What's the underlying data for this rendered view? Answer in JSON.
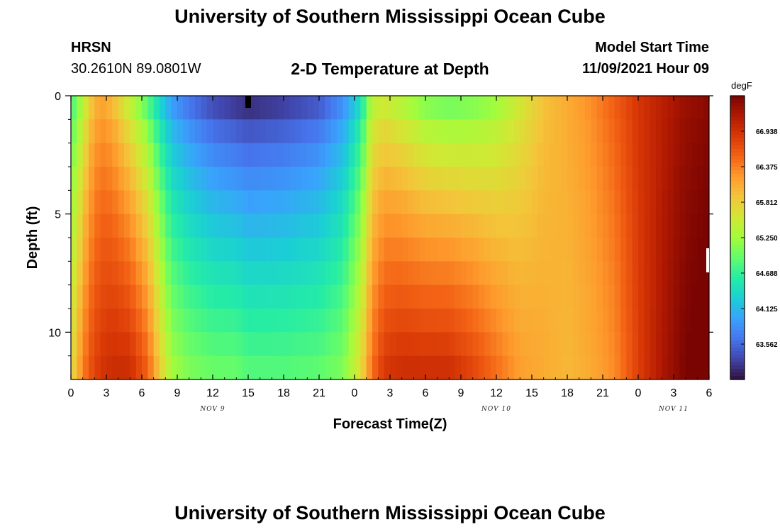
{
  "header": {
    "title": "University of Southern Mississippi Ocean Cube",
    "station": "HRSN",
    "coords": "30.2610N  89.0801W",
    "subtitle": "2-D Temperature at Depth",
    "model_start_label": "Model Start Time",
    "model_start_value": "11/09/2021 Hour 09"
  },
  "footer": {
    "title": "University of Southern Mississippi Ocean Cube"
  },
  "chart_data": {
    "type": "heatmap",
    "xlabel": "Forecast Time(Z)",
    "ylabel": "Depth (ft)",
    "x_range_hours": [
      0,
      54
    ],
    "y_range_ft": [
      0,
      12
    ],
    "y_inverted": true,
    "x_ticks": [
      "0",
      "3",
      "6",
      "9",
      "12",
      "15",
      "18",
      "21",
      "0",
      "3",
      "6",
      "9",
      "12",
      "15",
      "18",
      "21",
      "0",
      "3",
      "6"
    ],
    "date_labels": [
      {
        "label": "NOV 9",
        "hour": 12
      },
      {
        "label": "NOV 10",
        "hour": 36
      },
      {
        "label": "NOV 11",
        "hour": 51
      }
    ],
    "y_ticks": [
      {
        "value": 0,
        "label": "0"
      },
      {
        "value": 5,
        "label": "5"
      },
      {
        "value": 10,
        "label": "10"
      }
    ],
    "colorbar": {
      "unit": "degF",
      "min": 63.0,
      "max": 67.5,
      "ticks": [
        "63.562",
        "64.125",
        "64.688",
        "65.250",
        "65.812",
        "66.375",
        "66.938"
      ],
      "colors": [
        "#30123b",
        "#4145ab",
        "#4675ed",
        "#39a2fc",
        "#1bcfd4",
        "#24eca6",
        "#61fc6c",
        "#a4fc3b",
        "#d1e834",
        "#f3c63a",
        "#fe9b2d",
        "#f36315",
        "#d93806",
        "#b11901",
        "#7a0402"
      ]
    },
    "temperature_profile": {
      "hours": [
        0,
        0.5,
        1.0,
        1.7,
        2.5,
        3.5,
        5.0,
        6.5,
        7.5,
        8.5,
        10,
        12,
        14,
        15,
        18,
        21,
        23,
        24.5,
        25.5,
        26.5,
        28,
        30,
        32,
        34,
        36,
        38,
        40,
        42,
        44,
        46,
        48,
        50,
        52,
        54
      ],
      "surface": [
        64.7,
        64.9,
        65.3,
        65.8,
        66.1,
        65.9,
        65.3,
        64.7,
        64.2,
        63.8,
        63.5,
        63.2,
        63.05,
        63.0,
        63.1,
        63.3,
        63.7,
        64.3,
        65.3,
        65.4,
        65.2,
        64.9,
        64.8,
        64.9,
        65.1,
        65.5,
        65.9,
        66.1,
        66.3,
        66.6,
        66.9,
        67.1,
        67.3,
        67.4
      ],
      "bottom": [
        65.7,
        66.0,
        66.4,
        66.7,
        66.9,
        67.0,
        67.0,
        66.6,
        65.9,
        65.3,
        65.1,
        65.0,
        65.0,
        64.9,
        64.9,
        64.95,
        65.1,
        65.7,
        66.5,
        66.9,
        67.0,
        67.0,
        67.0,
        66.8,
        66.5,
        66.2,
        66.1,
        66.0,
        66.1,
        66.3,
        66.8,
        67.2,
        67.5,
        67.6
      ]
    }
  }
}
